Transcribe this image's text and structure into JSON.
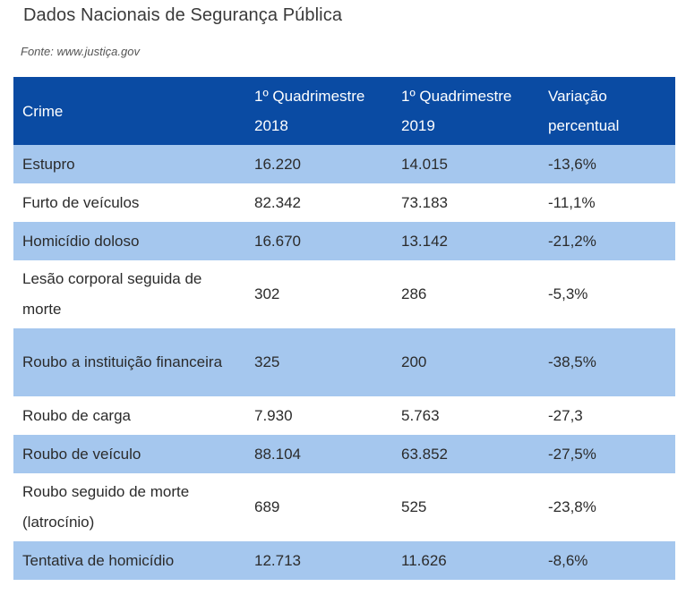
{
  "page": {
    "title": "Dados Nacionais de Segurança Pública",
    "source": "Fonte: www.justiça.gov"
  },
  "table": {
    "headers": {
      "crime": "Crime",
      "q2018_line1": "1º Quadrimestre",
      "q2018_line2": "2018",
      "q2019_line1": "1º Quadrimestre",
      "q2019_line2": "2019",
      "variation_line1": "Variação",
      "variation_line2": "percentual"
    },
    "rows": [
      {
        "crime": "Estupro",
        "y2018": "16.220",
        "y2019": "14.015",
        "variation": "-13,6%"
      },
      {
        "crime": "Furto de veículos",
        "y2018": "82.342",
        "y2019": "73.183",
        "variation": "-11,1%"
      },
      {
        "crime": "Homicídio doloso",
        "y2018": "16.670",
        "y2019": "13.142",
        "variation": "-21,2%"
      },
      {
        "crime": "Lesão corporal seguida de morte",
        "y2018": "302",
        "y2019": "286",
        "variation": "-5,3%"
      },
      {
        "crime": "Roubo a instituição financeira",
        "y2018": "325",
        "y2019": "200",
        "variation": "-38,5%"
      },
      {
        "crime": "Roubo de carga",
        "y2018": "7.930",
        "y2019": "5.763",
        "variation": "-27,3"
      },
      {
        "crime": "Roubo de veículo",
        "y2018": "88.104",
        "y2019": "63.852",
        "variation": "-27,5%"
      },
      {
        "crime": "Roubo seguido de morte (latrocínio)",
        "y2018": "689",
        "y2019": "525",
        "variation": "-23,8%"
      },
      {
        "crime": "Tentativa de homicídio",
        "y2018": "12.713",
        "y2019": "11.626",
        "variation": "-8,6%"
      }
    ]
  },
  "colors": {
    "header_bg": "#0a4ba3",
    "header_text": "#ffffff",
    "shaded_row": "#a5c7ee",
    "plain_row": "#ffffff"
  }
}
